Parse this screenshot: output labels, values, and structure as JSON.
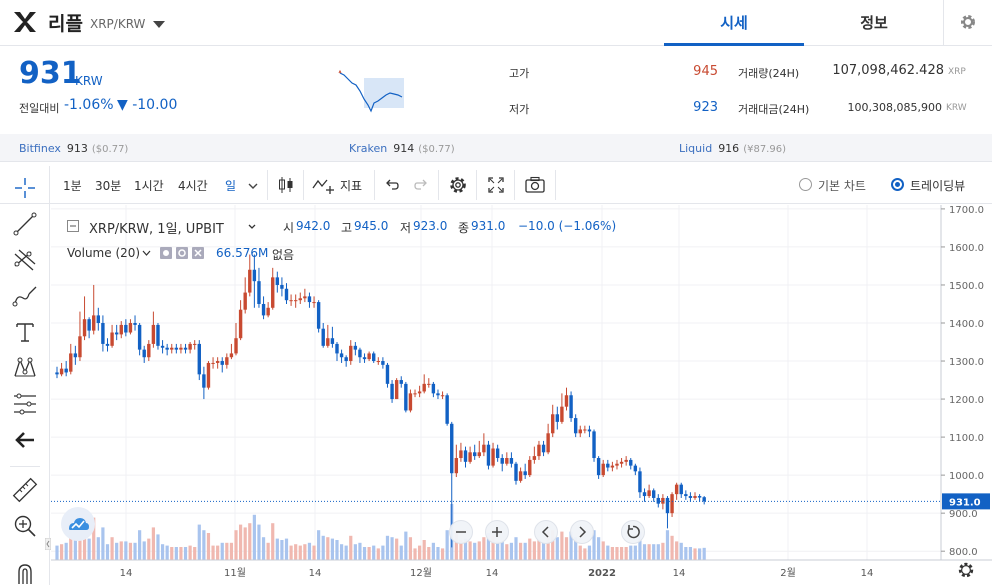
{
  "header": {
    "coin_name": "리플",
    "pair": "XRP/KRW",
    "tabs": [
      "시세",
      "정보"
    ]
  },
  "summary": {
    "price": "931",
    "price_unit": "KRW",
    "change_label": "전일대비",
    "change_rate": "-1.06%",
    "change_abs": "▼ -10.00",
    "high_label": "고가",
    "high_value": "945",
    "low_label": "저가",
    "low_value": "923",
    "volume_label": "거래량(24H)",
    "volume_value": "107,098,462.428",
    "volume_unit": "XRP",
    "amount_label": "거래대금(24H)",
    "amount_value": "100,308,085,900",
    "amount_unit": "KRW"
  },
  "exchanges": [
    {
      "name": "Bitfinex",
      "price": "913",
      "usd": "($0.77)"
    },
    {
      "name": "Kraken",
      "price": "914",
      "usd": "($0.77)"
    },
    {
      "name": "Liquid",
      "price": "916",
      "usd": "(¥87.96)"
    }
  ],
  "toolbar": {
    "intervals": [
      "1분",
      "30분",
      "1시간",
      "4시간",
      "일"
    ],
    "active_interval": "일",
    "indicator_label": "지표",
    "view_basic": "기본 차트",
    "view_tradingview": "트레이딩뷰",
    "selected_view": "트레이딩뷰"
  },
  "colors": {
    "up": "#c84a31",
    "down": "#1261c4",
    "up_volume": "#f0b8b0",
    "down_volume": "#a9c4ee"
  },
  "legend": {
    "symbol": "XRP/KRW, 1일, UPBIT",
    "open_label": "시",
    "open": "942.0",
    "high_label": "고",
    "high": "945.0",
    "low_label": "저",
    "low": "923.0",
    "close_label": "종",
    "close": "931.0",
    "change": "−10.0 (−1.06%)",
    "volume_label": "Volume (20)",
    "volume_value": "66.576M",
    "volume_extra": "없음"
  },
  "chart_data": {
    "type": "candlestick",
    "y_ticks": [
      "1700.0",
      "1600.0",
      "1500.0",
      "1400.0",
      "1300.0",
      "1200.0",
      "1100.0",
      "1000.0",
      "900.0",
      "800.0"
    ],
    "ylim": [
      790,
      1705
    ],
    "current_price_label": "931.0",
    "x_ticks": [
      "14",
      "11월",
      "14",
      "12월",
      "14",
      "2022",
      "14",
      "2월",
      "14"
    ],
    "candles": [
      {
        "o": 1270,
        "c": 1265,
        "h": 1285,
        "l": 1255
      },
      {
        "o": 1265,
        "c": 1280,
        "h": 1295,
        "l": 1260
      },
      {
        "o": 1280,
        "c": 1270,
        "h": 1300,
        "l": 1260
      },
      {
        "o": 1272,
        "c": 1320,
        "h": 1345,
        "l": 1265
      },
      {
        "o": 1320,
        "c": 1310,
        "h": 1340,
        "l": 1290
      },
      {
        "o": 1310,
        "c": 1365,
        "h": 1430,
        "l": 1300
      },
      {
        "o": 1365,
        "c": 1410,
        "h": 1470,
        "l": 1355
      },
      {
        "o": 1410,
        "c": 1380,
        "h": 1415,
        "l": 1360
      },
      {
        "o": 1380,
        "c": 1420,
        "h": 1500,
        "l": 1370
      },
      {
        "o": 1420,
        "c": 1400,
        "h": 1440,
        "l": 1380
      },
      {
        "o": 1400,
        "c": 1345,
        "h": 1420,
        "l": 1325
      },
      {
        "o": 1345,
        "c": 1340,
        "h": 1360,
        "l": 1325
      },
      {
        "o": 1340,
        "c": 1375,
        "h": 1395,
        "l": 1335
      },
      {
        "o": 1375,
        "c": 1370,
        "h": 1395,
        "l": 1355
      },
      {
        "o": 1370,
        "c": 1395,
        "h": 1405,
        "l": 1360
      },
      {
        "o": 1395,
        "c": 1375,
        "h": 1410,
        "l": 1365
      },
      {
        "o": 1375,
        "c": 1400,
        "h": 1410,
        "l": 1370
      },
      {
        "o": 1400,
        "c": 1395,
        "h": 1420,
        "l": 1380
      },
      {
        "o": 1395,
        "c": 1330,
        "h": 1400,
        "l": 1315
      },
      {
        "o": 1330,
        "c": 1310,
        "h": 1340,
        "l": 1295
      },
      {
        "o": 1310,
        "c": 1345,
        "h": 1355,
        "l": 1300
      },
      {
        "o": 1345,
        "c": 1395,
        "h": 1430,
        "l": 1335
      },
      {
        "o": 1395,
        "c": 1340,
        "h": 1400,
        "l": 1330
      },
      {
        "o": 1340,
        "c": 1335,
        "h": 1355,
        "l": 1320
      },
      {
        "o": 1335,
        "c": 1330,
        "h": 1345,
        "l": 1315
      },
      {
        "o": 1330,
        "c": 1335,
        "h": 1345,
        "l": 1320
      },
      {
        "o": 1335,
        "c": 1330,
        "h": 1345,
        "l": 1320
      },
      {
        "o": 1330,
        "c": 1335,
        "h": 1345,
        "l": 1320
      },
      {
        "o": 1335,
        "c": 1330,
        "h": 1345,
        "l": 1320
      },
      {
        "o": 1330,
        "c": 1345,
        "h": 1350,
        "l": 1320
      },
      {
        "o": 1345,
        "c": 1345,
        "h": 1355,
        "l": 1330
      },
      {
        "o": 1345,
        "c": 1265,
        "h": 1355,
        "l": 1250
      },
      {
        "o": 1265,
        "c": 1230,
        "h": 1285,
        "l": 1200
      },
      {
        "o": 1230,
        "c": 1295,
        "h": 1300,
        "l": 1225
      },
      {
        "o": 1295,
        "c": 1295,
        "h": 1310,
        "l": 1280
      },
      {
        "o": 1295,
        "c": 1300,
        "h": 1310,
        "l": 1280
      },
      {
        "o": 1300,
        "c": 1290,
        "h": 1310,
        "l": 1270
      },
      {
        "o": 1290,
        "c": 1310,
        "h": 1320,
        "l": 1280
      },
      {
        "o": 1310,
        "c": 1320,
        "h": 1345,
        "l": 1305
      },
      {
        "o": 1320,
        "c": 1360,
        "h": 1400,
        "l": 1315
      },
      {
        "o": 1360,
        "c": 1435,
        "h": 1460,
        "l": 1355
      },
      {
        "o": 1435,
        "c": 1480,
        "h": 1520,
        "l": 1425
      },
      {
        "o": 1480,
        "c": 1540,
        "h": 1580,
        "l": 1470
      },
      {
        "o": 1540,
        "c": 1510,
        "h": 1580,
        "l": 1440
      },
      {
        "o": 1510,
        "c": 1450,
        "h": 1545,
        "l": 1440
      },
      {
        "o": 1450,
        "c": 1420,
        "h": 1470,
        "l": 1410
      },
      {
        "o": 1420,
        "c": 1440,
        "h": 1455,
        "l": 1415
      },
      {
        "o": 1440,
        "c": 1520,
        "h": 1545,
        "l": 1435
      },
      {
        "o": 1520,
        "c": 1500,
        "h": 1535,
        "l": 1480
      },
      {
        "o": 1500,
        "c": 1490,
        "h": 1520,
        "l": 1470
      },
      {
        "o": 1490,
        "c": 1460,
        "h": 1505,
        "l": 1450
      },
      {
        "o": 1460,
        "c": 1460,
        "h": 1475,
        "l": 1445
      },
      {
        "o": 1460,
        "c": 1460,
        "h": 1475,
        "l": 1440
      },
      {
        "o": 1460,
        "c": 1465,
        "h": 1480,
        "l": 1450
      },
      {
        "o": 1465,
        "c": 1470,
        "h": 1490,
        "l": 1455
      },
      {
        "o": 1470,
        "c": 1455,
        "h": 1480,
        "l": 1440
      },
      {
        "o": 1455,
        "c": 1455,
        "h": 1470,
        "l": 1440
      },
      {
        "o": 1455,
        "c": 1385,
        "h": 1460,
        "l": 1375
      },
      {
        "o": 1385,
        "c": 1340,
        "h": 1400,
        "l": 1335
      },
      {
        "o": 1340,
        "c": 1360,
        "h": 1395,
        "l": 1335
      },
      {
        "o": 1360,
        "c": 1345,
        "h": 1390,
        "l": 1335
      },
      {
        "o": 1345,
        "c": 1320,
        "h": 1350,
        "l": 1300
      },
      {
        "o": 1320,
        "c": 1310,
        "h": 1330,
        "l": 1295
      },
      {
        "o": 1310,
        "c": 1300,
        "h": 1315,
        "l": 1285
      },
      {
        "o": 1300,
        "c": 1340,
        "h": 1355,
        "l": 1290
      },
      {
        "o": 1340,
        "c": 1330,
        "h": 1350,
        "l": 1315
      },
      {
        "o": 1330,
        "c": 1310,
        "h": 1335,
        "l": 1295
      },
      {
        "o": 1310,
        "c": 1305,
        "h": 1320,
        "l": 1295
      },
      {
        "o": 1305,
        "c": 1320,
        "h": 1325,
        "l": 1300
      },
      {
        "o": 1320,
        "c": 1300,
        "h": 1325,
        "l": 1295
      },
      {
        "o": 1300,
        "c": 1300,
        "h": 1310,
        "l": 1290
      },
      {
        "o": 1300,
        "c": 1290,
        "h": 1310,
        "l": 1280
      },
      {
        "o": 1290,
        "c": 1240,
        "h": 1295,
        "l": 1230
      },
      {
        "o": 1240,
        "c": 1200,
        "h": 1250,
        "l": 1190
      },
      {
        "o": 1200,
        "c": 1250,
        "h": 1255,
        "l": 1200
      },
      {
        "o": 1250,
        "c": 1240,
        "h": 1260,
        "l": 1230
      },
      {
        "o": 1240,
        "c": 1170,
        "h": 1245,
        "l": 1165
      },
      {
        "o": 1170,
        "c": 1215,
        "h": 1225,
        "l": 1165
      },
      {
        "o": 1215,
        "c": 1215,
        "h": 1225,
        "l": 1205
      },
      {
        "o": 1215,
        "c": 1220,
        "h": 1235,
        "l": 1205
      },
      {
        "o": 1220,
        "c": 1240,
        "h": 1265,
        "l": 1215
      },
      {
        "o": 1240,
        "c": 1240,
        "h": 1255,
        "l": 1230
      },
      {
        "o": 1240,
        "c": 1215,
        "h": 1245,
        "l": 1205
      },
      {
        "o": 1215,
        "c": 1210,
        "h": 1225,
        "l": 1200
      },
      {
        "o": 1210,
        "c": 1210,
        "h": 1220,
        "l": 1200
      },
      {
        "o": 1210,
        "c": 1135,
        "h": 1215,
        "l": 1130
      },
      {
        "o": 1135,
        "c": 1005,
        "h": 1140,
        "l": 810
      },
      {
        "o": 1005,
        "c": 1045,
        "h": 1080,
        "l": 995
      },
      {
        "o": 1045,
        "c": 1065,
        "h": 1085,
        "l": 1035
      },
      {
        "o": 1065,
        "c": 1035,
        "h": 1075,
        "l": 1020
      },
      {
        "o": 1035,
        "c": 1060,
        "h": 1075,
        "l": 1030
      },
      {
        "o": 1060,
        "c": 1050,
        "h": 1080,
        "l": 1040
      },
      {
        "o": 1050,
        "c": 1060,
        "h": 1090,
        "l": 1045
      },
      {
        "o": 1060,
        "c": 1080,
        "h": 1110,
        "l": 1050
      },
      {
        "o": 1080,
        "c": 1025,
        "h": 1090,
        "l": 1015
      },
      {
        "o": 1025,
        "c": 1070,
        "h": 1085,
        "l": 1020
      },
      {
        "o": 1070,
        "c": 1045,
        "h": 1080,
        "l": 1035
      },
      {
        "o": 1045,
        "c": 1030,
        "h": 1055,
        "l": 1010
      },
      {
        "o": 1030,
        "c": 1045,
        "h": 1060,
        "l": 1025
      },
      {
        "o": 1045,
        "c": 1030,
        "h": 1060,
        "l": 1020
      },
      {
        "o": 1030,
        "c": 985,
        "h": 1035,
        "l": 975
      },
      {
        "o": 985,
        "c": 1010,
        "h": 1020,
        "l": 980
      },
      {
        "o": 1010,
        "c": 1000,
        "h": 1030,
        "l": 990
      },
      {
        "o": 1000,
        "c": 1040,
        "h": 1050,
        "l": 995
      },
      {
        "o": 1040,
        "c": 1050,
        "h": 1075,
        "l": 1030
      },
      {
        "o": 1050,
        "c": 1080,
        "h": 1090,
        "l": 1040
      },
      {
        "o": 1080,
        "c": 1060,
        "h": 1090,
        "l": 1050
      },
      {
        "o": 1060,
        "c": 1110,
        "h": 1135,
        "l": 1055
      },
      {
        "o": 1110,
        "c": 1160,
        "h": 1185,
        "l": 1100
      },
      {
        "o": 1160,
        "c": 1140,
        "h": 1180,
        "l": 1120
      },
      {
        "o": 1140,
        "c": 1180,
        "h": 1215,
        "l": 1135
      },
      {
        "o": 1180,
        "c": 1210,
        "h": 1230,
        "l": 1170
      },
      {
        "o": 1210,
        "c": 1150,
        "h": 1220,
        "l": 1140
      },
      {
        "o": 1150,
        "c": 1110,
        "h": 1160,
        "l": 1100
      },
      {
        "o": 1110,
        "c": 1120,
        "h": 1130,
        "l": 1100
      },
      {
        "o": 1120,
        "c": 1120,
        "h": 1130,
        "l": 1110
      },
      {
        "o": 1120,
        "c": 1115,
        "h": 1130,
        "l": 1100
      },
      {
        "o": 1115,
        "c": 1045,
        "h": 1120,
        "l": 1035
      },
      {
        "o": 1045,
        "c": 1000,
        "h": 1050,
        "l": 990
      },
      {
        "o": 1000,
        "c": 1030,
        "h": 1040,
        "l": 995
      },
      {
        "o": 1030,
        "c": 1020,
        "h": 1040,
        "l": 1010
      },
      {
        "o": 1020,
        "c": 1025,
        "h": 1035,
        "l": 1010
      },
      {
        "o": 1025,
        "c": 1030,
        "h": 1040,
        "l": 1015
      },
      {
        "o": 1030,
        "c": 1035,
        "h": 1045,
        "l": 1020
      },
      {
        "o": 1035,
        "c": 1040,
        "h": 1050,
        "l": 1025
      },
      {
        "o": 1040,
        "c": 1025,
        "h": 1045,
        "l": 1015
      },
      {
        "o": 1025,
        "c": 1010,
        "h": 1030,
        "l": 1000
      },
      {
        "o": 1010,
        "c": 955,
        "h": 1020,
        "l": 940
      },
      {
        "o": 955,
        "c": 945,
        "h": 965,
        "l": 930
      },
      {
        "o": 945,
        "c": 960,
        "h": 975,
        "l": 940
      },
      {
        "o": 960,
        "c": 940,
        "h": 965,
        "l": 930
      },
      {
        "o": 940,
        "c": 925,
        "h": 950,
        "l": 915
      },
      {
        "o": 925,
        "c": 940,
        "h": 950,
        "l": 910
      },
      {
        "o": 940,
        "c": 900,
        "h": 945,
        "l": 860
      },
      {
        "o": 900,
        "c": 950,
        "h": 955,
        "l": 890
      },
      {
        "o": 950,
        "c": 975,
        "h": 980,
        "l": 935
      },
      {
        "o": 975,
        "c": 950,
        "h": 980,
        "l": 940
      },
      {
        "o": 950,
        "c": 945,
        "h": 960,
        "l": 935
      },
      {
        "o": 945,
        "c": 940,
        "h": 955,
        "l": 930
      },
      {
        "o": 940,
        "c": 945,
        "h": 955,
        "l": 935
      },
      {
        "o": 945,
        "c": 941,
        "h": 950,
        "l": 930
      },
      {
        "o": 942,
        "c": 931,
        "h": 945,
        "l": 923
      }
    ]
  }
}
